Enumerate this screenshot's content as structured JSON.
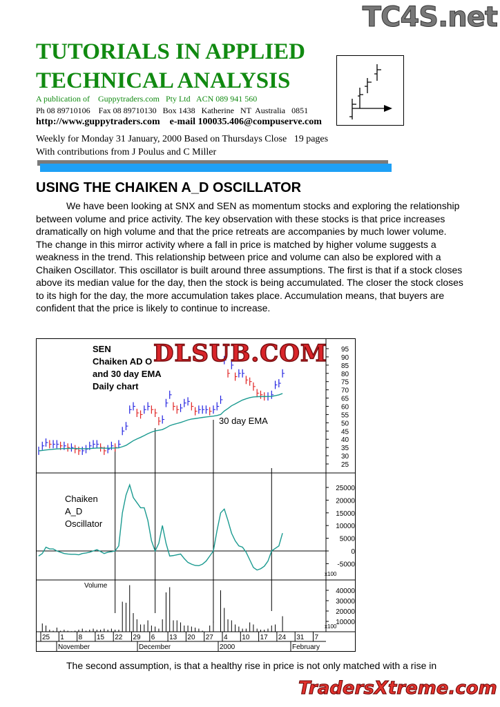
{
  "watermarks": {
    "top": "TC4S.net",
    "chart": "DLSUB.COM",
    "bottom": "TradersXtreme.com"
  },
  "header": {
    "title_line1": "TUTORIALS IN APPLIED",
    "title_line2": "TECHNICAL ANALYSIS",
    "publication": "A publication of    Guppytraders.com   Pty Ltd   ACN 089 941 560",
    "contact": "Ph 08 89710106    Fax 08 89710130   Box 1438   Katherine   NT  Australia   0851",
    "web": "http://www.guppytraders.com    e-mail 100035.406@compuserve.com",
    "weekly": "Weekly for Monday 31 January, 2000 Based on Thursdays Close   19 pages",
    "contributions": "With contributions from J Poulus and C Miller",
    "accent_color": "#118a11",
    "bar_color": "#1ea0f5"
  },
  "article": {
    "heading": "USING THE CHAIKEN A_D OSCILLATOR",
    "paragraph1": "We have been looking at SNX and SEN as momentum stocks and exploring the relationship between volume and price activity.  The key observation with these stocks is that price increases dramatically on high volume and that the price retreats are accompanies by much lower volume.  The change in this mirror activity where a fall in price is matched by higher volume suggests a weakness in the trend.  This relationship between price and volume can also be explored with a Chaiken Oscillator.  This oscillator is built around three assumptions.  The first is that if a stock closes above its median value for the day, then the stock is being accumulated.  The closer the stock closes to its high for the day, the more accumulation takes place.  Accumulation means, that buyers are confident that the price is likely to continue to increase.",
    "paragraph2": "The second assumption, is that a healthy rise in price is not only matched with a rise in"
  },
  "chart_data": {
    "type": "line",
    "title_lines": [
      "SEN",
      "Chaiken AD O",
      "and 30 day EMA",
      "Daily chart"
    ],
    "ema_label": "30 day EMA",
    "oscillator_label_lines": [
      "Chaiken",
      "A_D",
      "Oscillator"
    ],
    "volume_label": "Volume",
    "multiplier_label": "x100",
    "colors": {
      "up": "#2020e0",
      "down": "#e02020",
      "ema": "#1a9a90",
      "oscillator": "#1a9a90"
    },
    "price_ticks": [
      95,
      90,
      85,
      80,
      75,
      70,
      65,
      60,
      55,
      50,
      45,
      40,
      35,
      30,
      25
    ],
    "price_ylim": [
      23,
      97
    ],
    "oscillator_ticks": [
      25000,
      20000,
      15000,
      10000,
      5000,
      0,
      -5000
    ],
    "oscillator_ylim": [
      -9000,
      30000
    ],
    "volume_ticks": [
      40000,
      30000,
      20000,
      10000
    ],
    "volume_ylim": [
      0,
      48000
    ],
    "date_ticks": [
      "25",
      "1",
      "8",
      "15",
      "22",
      "29",
      "6",
      "13",
      "20",
      "27",
      "4",
      "10",
      "17",
      "24",
      "31",
      "7"
    ],
    "month_labels": [
      "November",
      "December",
      "2000",
      "February"
    ],
    "marker_days": [
      21,
      32,
      48,
      64
    ],
    "close": [
      33,
      36,
      38,
      37,
      37,
      37,
      36,
      36,
      35,
      35,
      34,
      33,
      33,
      34,
      36,
      37,
      37,
      35,
      33,
      34,
      36,
      35,
      37,
      45,
      48,
      58,
      60,
      56,
      55,
      58,
      60,
      58,
      56,
      51,
      52,
      62,
      67,
      60,
      58,
      59,
      62,
      63,
      60,
      57,
      58,
      58,
      58,
      57,
      58,
      60,
      64,
      88,
      80,
      85,
      78,
      80,
      80,
      76,
      75,
      72,
      68,
      67,
      66,
      66,
      67,
      73,
      74,
      80
    ],
    "oscillator": [
      -2000,
      -1000,
      1500,
      800,
      800,
      0,
      -500,
      -1000,
      -1200,
      -1300,
      -1300,
      -1500,
      -1000,
      -800,
      -500,
      0,
      500,
      -200,
      -1000,
      -500,
      -300,
      0,
      2000,
      15000,
      22000,
      26000,
      21000,
      19000,
      17000,
      17000,
      12000,
      4000,
      0,
      3000,
      10000,
      3000,
      -2000,
      -1800,
      -1500,
      -1200,
      -3000,
      -4500,
      -5200,
      -5700,
      -5800,
      -5200,
      -4000,
      -2000,
      0,
      8000,
      15000,
      16500,
      12000,
      7000,
      4000,
      2000,
      1500,
      -500,
      -3500,
      -6500,
      -7500,
      -7000,
      -6000,
      -4000,
      0,
      1000,
      2000,
      7000
    ],
    "volume": [
      0,
      8000,
      6000,
      2000,
      1000,
      4000,
      1000,
      2000,
      1000,
      500,
      1000,
      2000,
      3000,
      1000,
      2000,
      3000,
      2000,
      2000,
      3000,
      2000,
      3000,
      2000,
      2000,
      29000,
      28000,
      45000,
      18000,
      12000,
      7000,
      7000,
      11000,
      6000,
      5000,
      3000,
      12000,
      38000,
      43000,
      11000,
      11000,
      9000,
      6000,
      6000,
      5000,
      4000,
      3000,
      1000,
      0,
      6000,
      10000,
      0,
      40000,
      23000,
      12000,
      11000,
      7000,
      5000,
      3000,
      3000,
      9000,
      7000,
      3000,
      2000,
      2000,
      3000,
      6000,
      7000,
      0,
      15000
    ]
  }
}
